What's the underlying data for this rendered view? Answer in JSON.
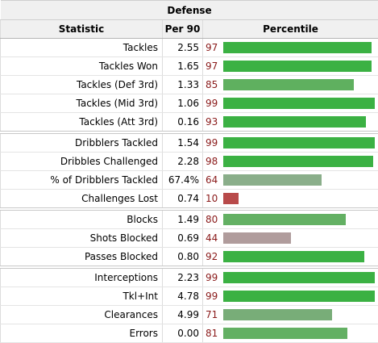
{
  "table": {
    "over_header": "Defense",
    "columns": {
      "statistic": "Statistic",
      "per90": "Per 90",
      "percentile": "Percentile"
    },
    "groups": [
      {
        "rows": [
          {
            "statistic": "Tackles",
            "per90": "2.55",
            "percentile": 97,
            "percentile_label": "97",
            "bar_color": "#3bb143"
          },
          {
            "statistic": "Tackles Won",
            "per90": "1.65",
            "percentile": 97,
            "percentile_label": "97",
            "bar_color": "#3bb143"
          },
          {
            "statistic": "Tackles (Def 3rd)",
            "per90": "1.33",
            "percentile": 85,
            "percentile_label": "85",
            "bar_color": "#5fb05f"
          },
          {
            "statistic": "Tackles (Mid 3rd)",
            "per90": "1.06",
            "percentile": 99,
            "percentile_label": "99",
            "bar_color": "#3bb143"
          },
          {
            "statistic": "Tackles (Att 3rd)",
            "per90": "0.16",
            "percentile": 93,
            "percentile_label": "93",
            "bar_color": "#3bb143"
          }
        ]
      },
      {
        "rows": [
          {
            "statistic": "Dribblers Tackled",
            "per90": "1.54",
            "percentile": 99,
            "percentile_label": "99",
            "bar_color": "#3bb143"
          },
          {
            "statistic": "Dribbles Challenged",
            "per90": "2.28",
            "percentile": 98,
            "percentile_label": "98",
            "bar_color": "#3bb143"
          },
          {
            "statistic": "% of Dribblers Tackled",
            "per90": "67.4%",
            "percentile": 64,
            "percentile_label": "64",
            "bar_color": "#8aae8a"
          },
          {
            "statistic": "Challenges Lost",
            "per90": "0.74",
            "percentile": 10,
            "percentile_label": "10",
            "bar_color": "#b84a4a"
          }
        ]
      },
      {
        "rows": [
          {
            "statistic": "Blocks",
            "per90": "1.49",
            "percentile": 80,
            "percentile_label": "80",
            "bar_color": "#63b063"
          },
          {
            "statistic": "Shots Blocked",
            "per90": "0.69",
            "percentile": 44,
            "percentile_label": "44",
            "bar_color": "#b09c9c"
          },
          {
            "statistic": "Passes Blocked",
            "per90": "0.80",
            "percentile": 92,
            "percentile_label": "92",
            "bar_color": "#3bb143"
          }
        ]
      },
      {
        "rows": [
          {
            "statistic": "Interceptions",
            "per90": "2.23",
            "percentile": 99,
            "percentile_label": "99",
            "bar_color": "#3bb143"
          },
          {
            "statistic": "Tkl+Int",
            "per90": "4.78",
            "percentile": 99,
            "percentile_label": "99",
            "bar_color": "#3bb143"
          },
          {
            "statistic": "Clearances",
            "per90": "4.99",
            "percentile": 71,
            "percentile_label": "71",
            "bar_color": "#78ad78"
          },
          {
            "statistic": "Errors",
            "per90": "0.00",
            "percentile": 81,
            "percentile_label": "81",
            "bar_color": "#63b063"
          }
        ]
      }
    ]
  }
}
